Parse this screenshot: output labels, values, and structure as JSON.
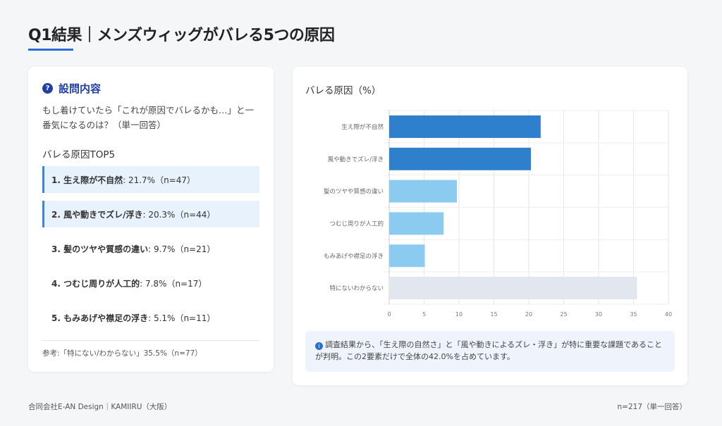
{
  "header": {
    "title": "Q1結果｜メンズウィッグがバレる5つの原因"
  },
  "question": {
    "heading": "設問内容",
    "icon": "question-circle-icon",
    "text": "もし着けていたら「これが原因でバレるかも…」と一番気になるのは？（単一回答）"
  },
  "top5": {
    "heading": "バレる原因TOP5",
    "items": [
      {
        "label": "1. 生え際が不自然",
        "value": ": 21.7%（n=47）",
        "highlight": true
      },
      {
        "label": "2. 風や動きでズレ/浮き",
        "value": ": 20.3%（n=44）",
        "highlight": true
      },
      {
        "label": "3. 髪のツヤや質感の違い",
        "value": ": 9.7%（n=21）",
        "highlight": false
      },
      {
        "label": "4. つむじ周りが人工的",
        "value": ": 7.8%（n=17）",
        "highlight": false
      },
      {
        "label": "5. もみあげや襟足の浮き",
        "value": ": 5.1%（n=11）",
        "highlight": false
      }
    ]
  },
  "reference": "参考:「特にない/わからない」35.5%（n=77）",
  "chart_data": {
    "type": "bar",
    "orientation": "horizontal",
    "title": "バレる原因（%）",
    "categories": [
      "生え際が不自然",
      "風や動きでズレ/浮き",
      "髪のツヤや質感の違い",
      "つむじ周りが人工的",
      "もみあげや襟足の浮き",
      "特にないわからない"
    ],
    "values": [
      21.7,
      20.3,
      9.7,
      7.8,
      5.1,
      35.5
    ],
    "colors": [
      "#2f80cc",
      "#2f80cc",
      "#8ccbf0",
      "#8ccbf0",
      "#8ccbf0",
      "#e1e6ef"
    ],
    "xlim": [
      0,
      40
    ],
    "xticks": [
      0,
      5,
      10,
      15,
      20,
      25,
      30,
      35,
      40
    ],
    "grid": true
  },
  "insight": {
    "icon": "info-circle-icon",
    "text": "調査結果から、「生え際の自然さ」と「風や動きによるズレ・浮き」が特に重要な課題であることが判明。この2要素だけで全体の42.0%を占めています。"
  },
  "footer": {
    "left": "合同会社E-AN Design｜KAMIIRU（大阪）",
    "right": "n=217（単一回答）"
  }
}
